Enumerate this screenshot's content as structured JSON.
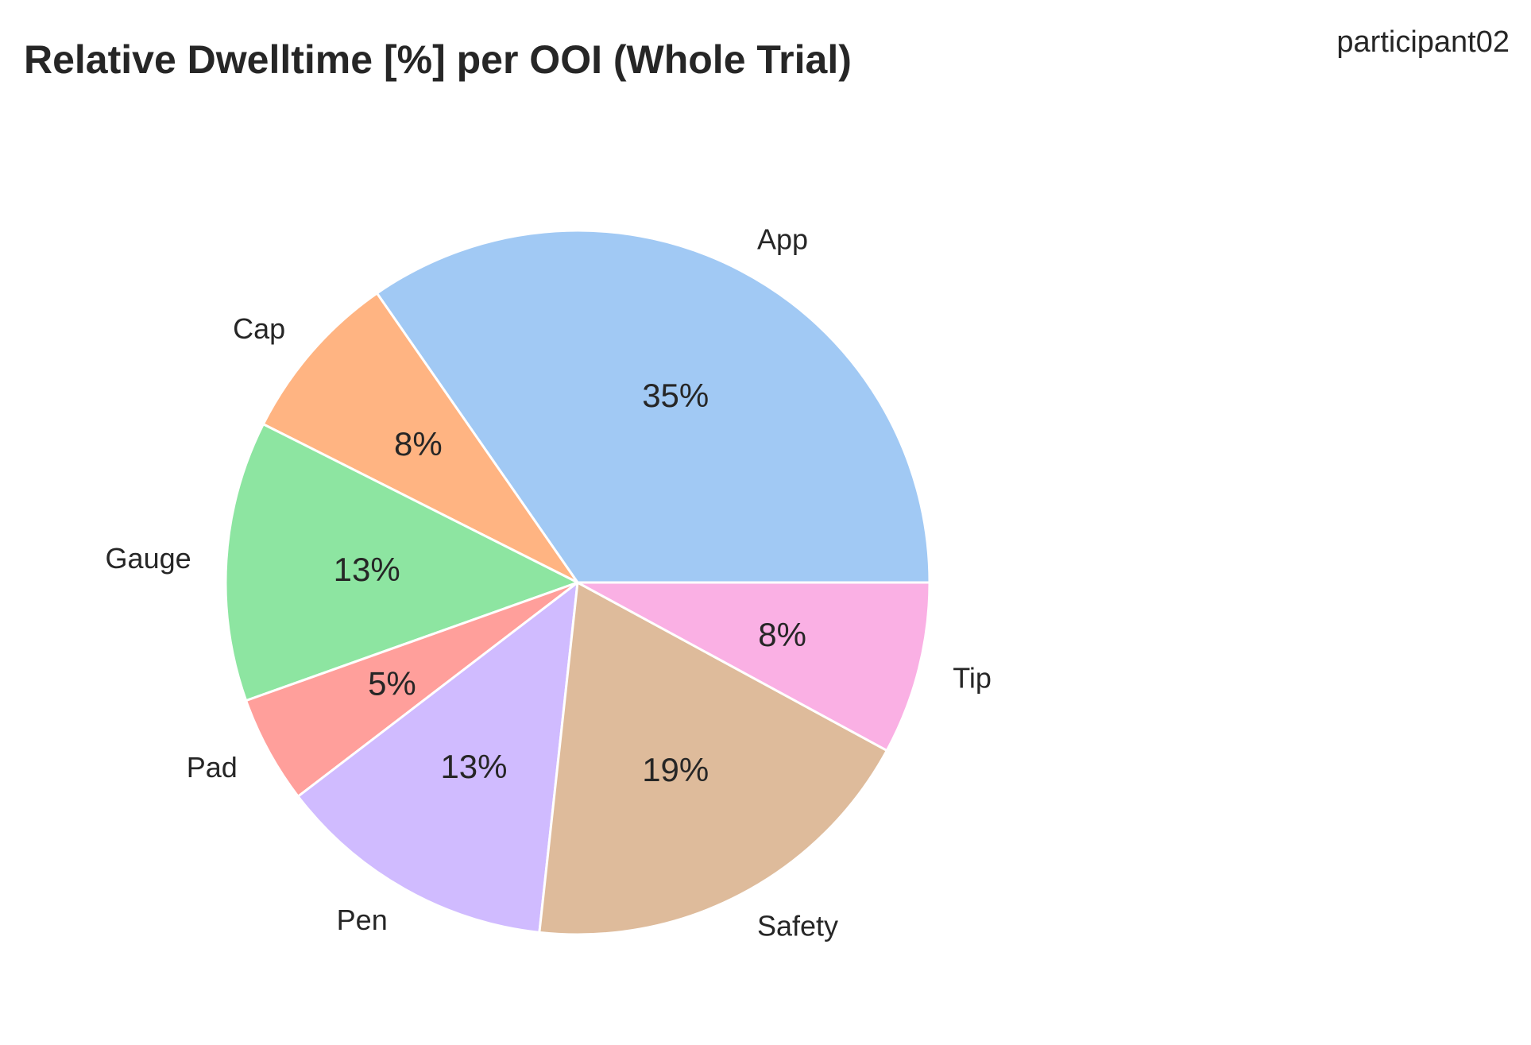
{
  "chart_data": {
    "type": "pie",
    "title": "Relative Dwelltime [%] per OOI (Whole Trial)",
    "subtitle": "participant02",
    "start_angle_deg": 0,
    "direction": "counterclockwise",
    "slices": [
      {
        "label": "App",
        "value": 35,
        "pct_label": "35%",
        "color": "#a1c9f4"
      },
      {
        "label": "Cap",
        "value": 8,
        "pct_label": "8%",
        "color": "#ffb482"
      },
      {
        "label": "Gauge",
        "value": 13,
        "pct_label": "13%",
        "color": "#8de5a1"
      },
      {
        "label": "Pad",
        "value": 5,
        "pct_label": "5%",
        "color": "#ff9f9b"
      },
      {
        "label": "Pen",
        "value": 13,
        "pct_label": "13%",
        "color": "#d0bbff"
      },
      {
        "label": "Safety",
        "value": 19,
        "pct_label": "19%",
        "color": "#debb9b"
      },
      {
        "label": "Tip",
        "value": 8,
        "pct_label": "8%",
        "color": "#fab0e4"
      }
    ]
  }
}
